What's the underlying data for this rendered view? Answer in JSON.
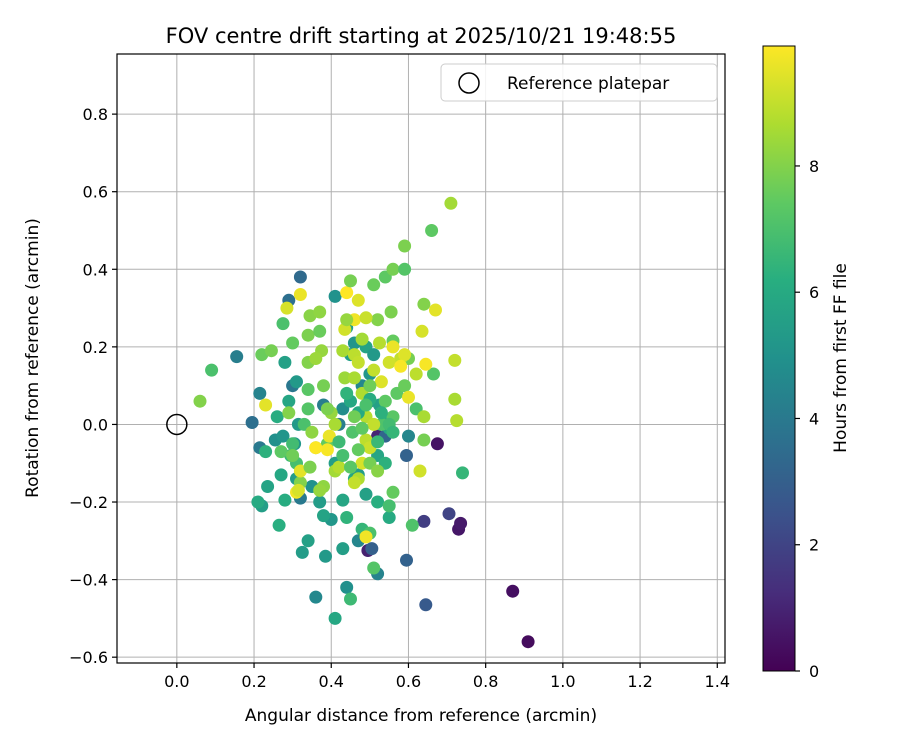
{
  "chart_data": {
    "type": "scatter",
    "title": "FOV centre drift starting at 2025/10/21 19:48:55",
    "xlabel": "Angular distance from reference (arcmin)",
    "ylabel": "Rotation from reference (arcmin)",
    "xlim": [
      -0.155,
      1.42
    ],
    "ylim": [
      -0.615,
      0.955
    ],
    "xticks": [
      0.0,
      0.2,
      0.4,
      0.6,
      0.8,
      1.0,
      1.2,
      1.4
    ],
    "xtick_labels": [
      "0.0",
      "0.2",
      "0.4",
      "0.6",
      "0.8",
      "1.0",
      "1.2",
      "1.4"
    ],
    "yticks": [
      -0.6,
      -0.4,
      -0.2,
      0.0,
      0.2,
      0.4,
      0.6,
      0.8
    ],
    "ytick_labels": [
      "−0.6",
      "−0.4",
      "−0.2",
      "0.0",
      "0.2",
      "0.4",
      "0.6",
      "0.8"
    ],
    "grid": true,
    "legend": {
      "position": "top-right",
      "entries": [
        "Reference platepar"
      ]
    },
    "reference_point": {
      "x": 0.0,
      "y": 0.0,
      "label": "Reference platepar"
    },
    "colorbar": {
      "label": "Hours from first FF file",
      "range": [
        0,
        9.9
      ],
      "ticks": [
        0,
        2,
        4,
        6,
        8
      ],
      "tick_labels": [
        "0",
        "2",
        "4",
        "6",
        "8"
      ],
      "colormap": "viridis"
    },
    "points": [
      [
        0.91,
        -0.56,
        0.3
      ],
      [
        0.87,
        -0.43,
        0.4
      ],
      [
        0.73,
        -0.27,
        0.6
      ],
      [
        0.735,
        -0.255,
        0.7
      ],
      [
        0.675,
        -0.05,
        0.5
      ],
      [
        0.495,
        -0.325,
        0.9
      ],
      [
        0.52,
        -0.03,
        1.0
      ],
      [
        0.64,
        -0.25,
        1.8
      ],
      [
        0.705,
        -0.23,
        2.0
      ],
      [
        0.645,
        -0.465,
        2.8
      ],
      [
        0.505,
        -0.32,
        3.0
      ],
      [
        0.595,
        -0.35,
        3.1
      ],
      [
        0.595,
        -0.08,
        3.1
      ],
      [
        0.54,
        -0.03,
        3.2
      ],
      [
        0.32,
        0.38,
        3.4
      ],
      [
        0.29,
        0.32,
        3.6
      ],
      [
        0.36,
        -0.445,
        4.6
      ],
      [
        0.3,
        0.1,
        3.9
      ],
      [
        0.195,
        0.005,
        3.6
      ],
      [
        0.215,
        -0.06,
        4.0
      ],
      [
        0.155,
        0.175,
        4.2
      ],
      [
        0.215,
        0.08,
        4.4
      ],
      [
        0.32,
        -0.19,
        4.0
      ],
      [
        0.38,
        0.05,
        4.2
      ],
      [
        0.44,
        -0.42,
        4.9
      ],
      [
        0.4,
        -0.245,
        5.2
      ],
      [
        0.43,
        -0.32,
        5.5
      ],
      [
        0.52,
        -0.385,
        4.4
      ],
      [
        0.47,
        -0.3,
        4.5
      ],
      [
        0.6,
        -0.03,
        4.5
      ],
      [
        0.43,
        0.04,
        4.8
      ],
      [
        0.48,
        0.1,
        4.6
      ],
      [
        0.42,
        0.0,
        4.2
      ],
      [
        0.5,
        0.06,
        5.0
      ],
      [
        0.255,
        -0.04,
        4.9
      ],
      [
        0.275,
        -0.03,
        5.1
      ],
      [
        0.305,
        -0.05,
        5.2
      ],
      [
        0.315,
        0.0,
        5.3
      ],
      [
        0.35,
        -0.16,
        5.0
      ],
      [
        0.37,
        -0.2,
        5.4
      ],
      [
        0.41,
        0.33,
        5.0
      ],
      [
        0.44,
        0.25,
        5.6
      ],
      [
        0.46,
        0.21,
        5.1
      ],
      [
        0.45,
        0.18,
        5.5
      ],
      [
        0.49,
        0.2,
        5.7
      ],
      [
        0.5,
        0.13,
        5.1
      ],
      [
        0.51,
        0.18,
        5.3
      ],
      [
        0.525,
        0.05,
        5.6
      ],
      [
        0.54,
        0.015,
        6.2
      ],
      [
        0.55,
        -0.01,
        5.9
      ],
      [
        0.52,
        -0.08,
        5.8
      ],
      [
        0.54,
        -0.1,
        6.3
      ],
      [
        0.46,
        -0.14,
        6.0
      ],
      [
        0.47,
        -0.13,
        5.4
      ],
      [
        0.49,
        -0.18,
        5.6
      ],
      [
        0.43,
        -0.195,
        5.8
      ],
      [
        0.41,
        -0.1,
        5.5
      ],
      [
        0.38,
        -0.235,
        5.7
      ],
      [
        0.34,
        -0.3,
        5.6
      ],
      [
        0.325,
        -0.33,
        5.4
      ],
      [
        0.265,
        -0.26,
        6.2
      ],
      [
        0.22,
        -0.21,
        5.5
      ],
      [
        0.21,
        -0.2,
        6.0
      ],
      [
        0.235,
        -0.16,
        5.7
      ],
      [
        0.27,
        -0.13,
        5.9
      ],
      [
        0.28,
        -0.195,
        6.1
      ],
      [
        0.31,
        -0.14,
        5.4
      ],
      [
        0.28,
        0.16,
        5.6
      ],
      [
        0.31,
        0.11,
        5.3
      ],
      [
        0.29,
        0.06,
        5.8
      ],
      [
        0.26,
        0.02,
        6.1
      ],
      [
        0.23,
        -0.07,
        6.3
      ],
      [
        0.44,
        -0.24,
        6.4
      ],
      [
        0.48,
        -0.27,
        6.5
      ],
      [
        0.52,
        -0.2,
        6.2
      ],
      [
        0.55,
        -0.24,
        6.0
      ],
      [
        0.385,
        -0.34,
        5.3
      ],
      [
        0.41,
        -0.5,
        5.9
      ],
      [
        0.45,
        -0.45,
        6.7
      ],
      [
        0.74,
        -0.125,
        6.5
      ],
      [
        0.61,
        -0.26,
        7.1
      ],
      [
        0.51,
        -0.37,
        7.2
      ],
      [
        0.5,
        -0.28,
        7.0
      ],
      [
        0.55,
        -0.21,
        6.9
      ],
      [
        0.56,
        -0.175,
        7.5
      ],
      [
        0.53,
        0.0,
        7.1
      ],
      [
        0.56,
        0.02,
        7.3
      ],
      [
        0.64,
        -0.04,
        7.8
      ],
      [
        0.62,
        0.04,
        7.0
      ],
      [
        0.665,
        0.13,
        7.2
      ],
      [
        0.57,
        0.08,
        7.4
      ],
      [
        0.59,
        0.1,
        7.6
      ],
      [
        0.6,
        0.17,
        7.8
      ],
      [
        0.56,
        0.215,
        7.5
      ],
      [
        0.555,
        0.29,
        7.9
      ],
      [
        0.52,
        0.27,
        8.0
      ],
      [
        0.54,
        0.38,
        7.4
      ],
      [
        0.51,
        0.36,
        7.6
      ],
      [
        0.56,
        0.4,
        7.8
      ],
      [
        0.59,
        0.4,
        7.2
      ],
      [
        0.59,
        0.46,
        7.9
      ],
      [
        0.66,
        0.5,
        7.4
      ],
      [
        0.71,
        0.57,
        8.5
      ],
      [
        0.64,
        0.31,
        8.0
      ],
      [
        0.09,
        0.14,
        7.0
      ],
      [
        0.06,
        0.06,
        8.0
      ],
      [
        0.22,
        0.18,
        7.6
      ],
      [
        0.245,
        0.19,
        7.8
      ],
      [
        0.275,
        0.26,
        7.0
      ],
      [
        0.3,
        0.21,
        7.5
      ],
      [
        0.34,
        0.23,
        7.9
      ],
      [
        0.345,
        0.28,
        8.1
      ],
      [
        0.37,
        0.29,
        8.2
      ],
      [
        0.37,
        0.24,
        7.6
      ],
      [
        0.375,
        0.19,
        8.3
      ],
      [
        0.34,
        0.16,
        8.0
      ],
      [
        0.36,
        0.17,
        8.4
      ],
      [
        0.38,
        0.1,
        7.8
      ],
      [
        0.34,
        0.09,
        7.3
      ],
      [
        0.34,
        0.04,
        7.2
      ],
      [
        0.33,
        0.0,
        7.0
      ],
      [
        0.3,
        -0.05,
        6.8
      ],
      [
        0.295,
        -0.08,
        6.6
      ],
      [
        0.31,
        -0.1,
        6.9
      ],
      [
        0.32,
        -0.15,
        8.0
      ],
      [
        0.38,
        -0.16,
        8.2
      ],
      [
        0.37,
        -0.17,
        8.3
      ],
      [
        0.36,
        -0.06,
        8.4
      ],
      [
        0.39,
        -0.05,
        7.5
      ],
      [
        0.41,
        -0.12,
        8.5
      ],
      [
        0.42,
        -0.11,
        8.8
      ],
      [
        0.41,
        0.0,
        8.6
      ],
      [
        0.4,
        0.03,
        8.3
      ],
      [
        0.39,
        0.04,
        7.9
      ],
      [
        0.435,
        0.12,
        8.4
      ],
      [
        0.43,
        0.19,
        8.6
      ],
      [
        0.46,
        0.18,
        8.9
      ],
      [
        0.47,
        0.16,
        9.0
      ],
      [
        0.46,
        0.12,
        8.6
      ],
      [
        0.48,
        0.08,
        8.7
      ],
      [
        0.49,
        0.02,
        8.8
      ],
      [
        0.51,
        0.0,
        9.0
      ],
      [
        0.49,
        -0.04,
        8.9
      ],
      [
        0.5,
        -0.06,
        9.1
      ],
      [
        0.48,
        -0.1,
        9.3
      ],
      [
        0.47,
        -0.14,
        8.7
      ],
      [
        0.46,
        -0.15,
        9.0
      ],
      [
        0.49,
        -0.29,
        9.7
      ],
      [
        0.58,
        0.17,
        9.0
      ],
      [
        0.59,
        0.18,
        9.4
      ],
      [
        0.62,
        0.13,
        8.9
      ],
      [
        0.64,
        0.02,
        8.6
      ],
      [
        0.63,
        -0.12,
        9.2
      ],
      [
        0.635,
        0.24,
        9.3
      ],
      [
        0.645,
        0.155,
        9.8
      ],
      [
        0.67,
        0.295,
        9.5
      ],
      [
        0.72,
        0.165,
        9.0
      ],
      [
        0.72,
        0.065,
        8.6
      ],
      [
        0.725,
        0.01,
        8.8
      ],
      [
        0.6,
        0.07,
        9.6
      ],
      [
        0.39,
        -0.065,
        9.8
      ],
      [
        0.395,
        -0.03,
        9.6
      ],
      [
        0.36,
        -0.06,
        9.9
      ],
      [
        0.32,
        -0.12,
        9.5
      ],
      [
        0.31,
        -0.175,
        9.7
      ],
      [
        0.315,
        -0.17,
        9.3
      ],
      [
        0.23,
        0.05,
        9.5
      ],
      [
        0.285,
        0.3,
        9.3
      ],
      [
        0.32,
        0.335,
        9.6
      ],
      [
        0.44,
        0.34,
        9.9
      ],
      [
        0.46,
        0.27,
        9.7
      ],
      [
        0.47,
        0.32,
        9.4
      ],
      [
        0.49,
        0.275,
        9.1
      ],
      [
        0.55,
        0.16,
        9.2
      ],
      [
        0.56,
        0.2,
        9.6
      ],
      [
        0.58,
        0.15,
        9.8
      ],
      [
        0.53,
        0.11,
        9.4
      ],
      [
        0.51,
        0.14,
        9.0
      ],
      [
        0.525,
        0.21,
        8.8
      ],
      [
        0.435,
        0.245,
        9.2
      ],
      [
        0.45,
        0.37,
        7.8
      ],
      [
        0.44,
        0.27,
        8.3
      ],
      [
        0.48,
        0.22,
        8.5
      ],
      [
        0.5,
        0.1,
        7.7
      ],
      [
        0.54,
        0.06,
        7.4
      ],
      [
        0.55,
        0.0,
        6.8
      ],
      [
        0.56,
        -0.02,
        6.5
      ],
      [
        0.53,
        0.03,
        6.3
      ],
      [
        0.52,
        -0.045,
        6.6
      ],
      [
        0.5,
        0.065,
        6.1
      ],
      [
        0.47,
        0.03,
        6.0
      ],
      [
        0.45,
        0.06,
        5.9
      ],
      [
        0.44,
        0.08,
        6.4
      ],
      [
        0.42,
        -0.045,
        6.7
      ],
      [
        0.43,
        -0.08,
        6.9
      ],
      [
        0.455,
        -0.02,
        7.1
      ],
      [
        0.48,
        -0.01,
        7.4
      ],
      [
        0.46,
        0.02,
        7.7
      ],
      [
        0.49,
        0.05,
        7.0
      ],
      [
        0.45,
        -0.11,
        7.3
      ],
      [
        0.47,
        -0.065,
        7.5
      ],
      [
        0.5,
        -0.1,
        7.8
      ],
      [
        0.52,
        -0.12,
        8.1
      ],
      [
        0.27,
        -0.07,
        7.4
      ],
      [
        0.3,
        -0.08,
        7.7
      ],
      [
        0.345,
        -0.11,
        7.9
      ],
      [
        0.35,
        -0.02,
        8.2
      ],
      [
        0.29,
        0.03,
        8.0
      ]
    ]
  }
}
